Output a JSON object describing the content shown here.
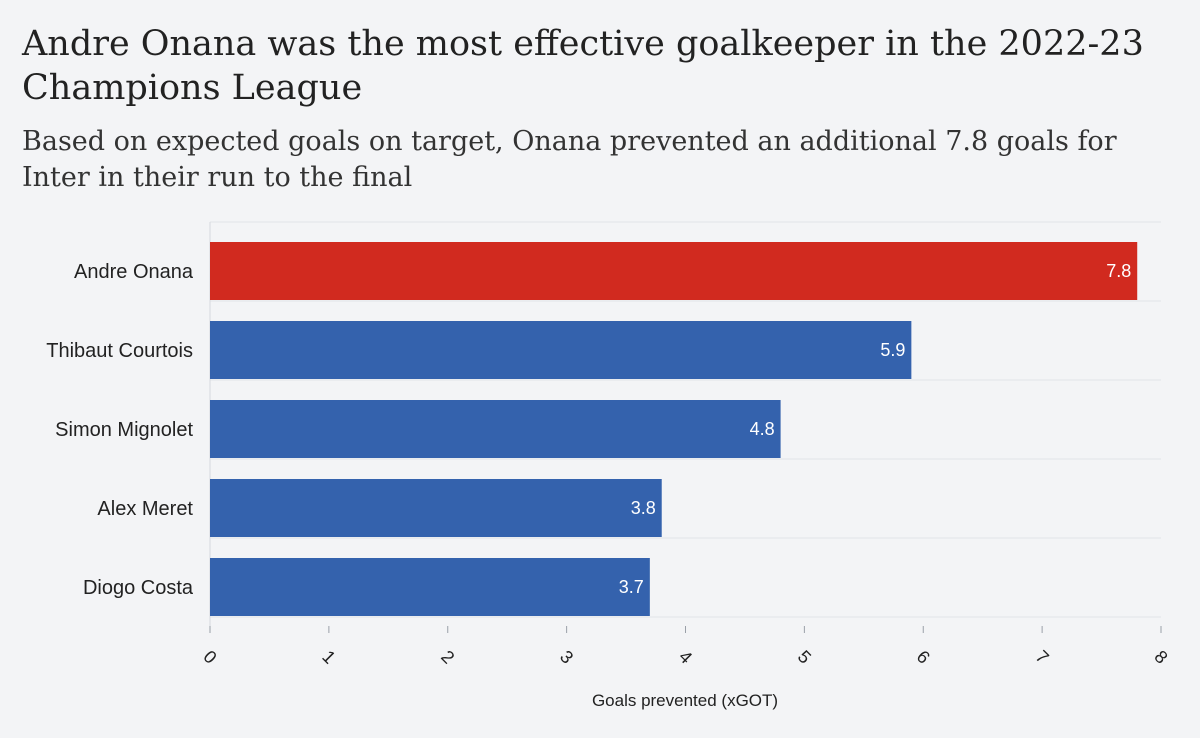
{
  "chart_data": {
    "type": "bar",
    "orientation": "horizontal",
    "title": "Andre Onana was the most effective goalkeeper in the 2022-23 Champions League",
    "subtitle": "Based on expected goals on target, Onana prevented an additional 7.8 goals for Inter in their run to the final",
    "categories": [
      "Andre Onana",
      "Thibaut Courtois",
      "Simon Mignolet",
      "Alex Meret",
      "Diogo Costa"
    ],
    "values": [
      7.8,
      5.9,
      4.8,
      3.8,
      3.7
    ],
    "data_labels": [
      "7.8",
      "5.9",
      "4.8",
      "3.8",
      "3.7"
    ],
    "bar_colors": [
      "#d12a1f",
      "#3462ad",
      "#3462ad",
      "#3462ad",
      "#3462ad"
    ],
    "xlabel": "Goals prevented (xGOT)",
    "ylabel": "",
    "xlim": [
      0,
      8
    ],
    "xticks": [
      0,
      1,
      2,
      3,
      4,
      5,
      6,
      7,
      8
    ],
    "grid": true,
    "legend": false
  }
}
